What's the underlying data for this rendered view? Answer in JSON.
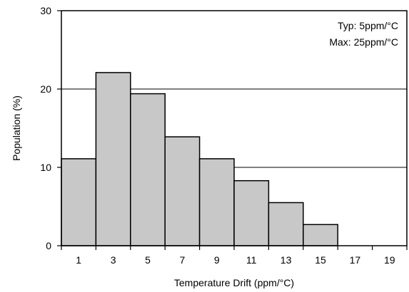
{
  "chart_data": {
    "type": "bar",
    "title": "",
    "xlabel": "Temperature Drift (ppm/°C)",
    "ylabel": "Population (%)",
    "ylim": [
      0,
      30
    ],
    "yticks": [
      "0",
      "10",
      "20",
      "30"
    ],
    "categories": [
      "1",
      "3",
      "5",
      "7",
      "9",
      "11",
      "13",
      "15",
      "17",
      "19"
    ],
    "values": [
      11.1,
      22.1,
      19.4,
      13.9,
      11.1,
      8.3,
      5.5,
      2.7,
      0,
      0
    ],
    "gridlines_y": [
      10,
      20
    ],
    "bar_color": "#c8c8c8",
    "annotations": [
      "Typ: 5ppm/°C",
      "Max: 25ppm/°C"
    ],
    "legend": "none"
  }
}
